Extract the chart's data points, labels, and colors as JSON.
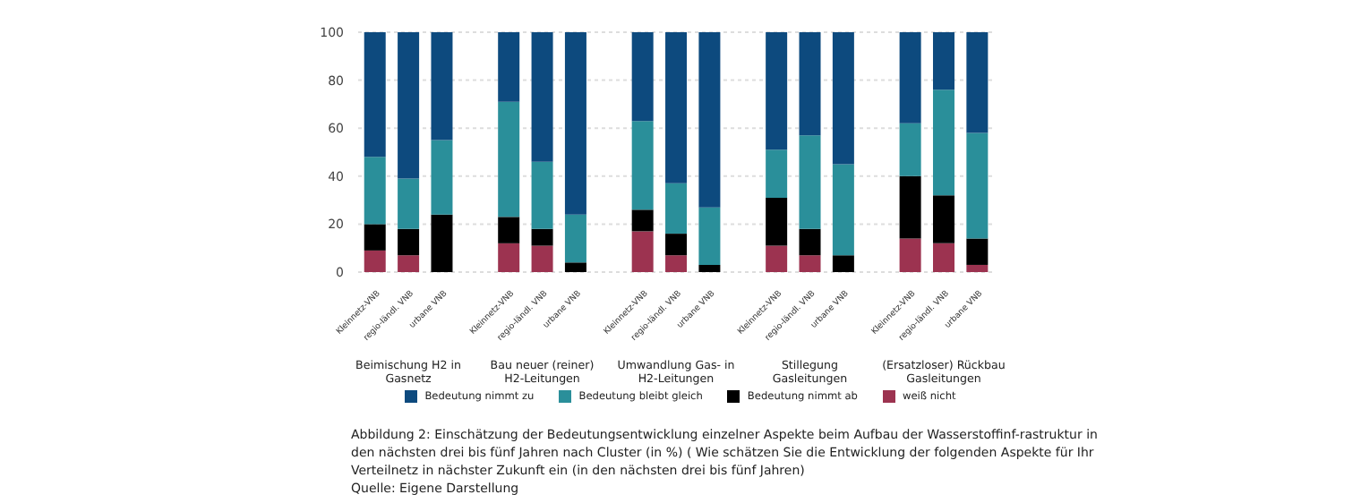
{
  "chart_data": {
    "type": "bar",
    "stacked": true,
    "categories": [
      "Kleinnetz-VNB",
      "regio-ländl. VNB",
      "urbane VNB",
      null,
      "Kleinnetz-VNB",
      "regio-ländl. VNB",
      "urbane VNB",
      null,
      "Kleinnetz-VNB",
      "regio-ländl. VNB",
      "urbane VNB",
      null,
      "Kleinnetz-VNB",
      "regio-ländl. VNB",
      "urbane VNB",
      null,
      "Kleinnetz-VNB",
      "regio-ländl. VNB",
      "urbane VNB"
    ],
    "series": [
      {
        "name": "weiß nicht",
        "color": "#9c3350",
        "values": [
          9,
          7,
          0,
          null,
          12,
          11,
          0,
          null,
          17,
          7,
          0,
          null,
          11,
          7,
          0,
          null,
          14,
          12,
          3
        ]
      },
      {
        "name": "Bedeutung nimmt ab",
        "color": "#000000",
        "values": [
          11,
          11,
          24,
          null,
          11,
          7,
          4,
          null,
          9,
          9,
          3,
          null,
          20,
          11,
          7,
          null,
          26,
          20,
          11
        ]
      },
      {
        "name": "Bedeutung bleibt gleich",
        "color": "#2a8f9a",
        "values": [
          28,
          21,
          31,
          null,
          48,
          28,
          20,
          null,
          37,
          21,
          24,
          null,
          20,
          39,
          38,
          null,
          22,
          44,
          44
        ]
      },
      {
        "name": "Bedeutung nimmt zu",
        "color": "#0d4a7e",
        "values": [
          52,
          61,
          45,
          null,
          29,
          54,
          76,
          null,
          37,
          63,
          73,
          null,
          49,
          43,
          55,
          null,
          38,
          24,
          42
        ]
      }
    ],
    "ylim": [
      0,
      100
    ],
    "yticks": [
      0,
      20,
      40,
      60,
      80,
      100
    ],
    "grid": "y",
    "legend": "bottom",
    "annotations": [
      "Beimischung H2 in Gasnetz",
      "Bau neuer (reiner) H2-Leitungen",
      "Umwandlung Gas- in H2-Leitungen",
      "Stillegung Gasleitungen",
      "(Ersatzloser) Rückbau Gasleitungen",
      "Abbildung 2: Einschätzung der Bedeutungsentwicklung einzelner Aspekte beim Aufbau der Wasserstoffinf-rastruktur in den nächsten drei bis fünf Jahren nach Cluster (in %) ( Wie schätzen Sie die Entwicklung der folgenden Aspekte für Ihr Verteilnetz in nächster Zukunft ein (in den nächsten drei bis fünf Jahren)",
      "Quelle: Eigene Darstellung"
    ]
  }
}
